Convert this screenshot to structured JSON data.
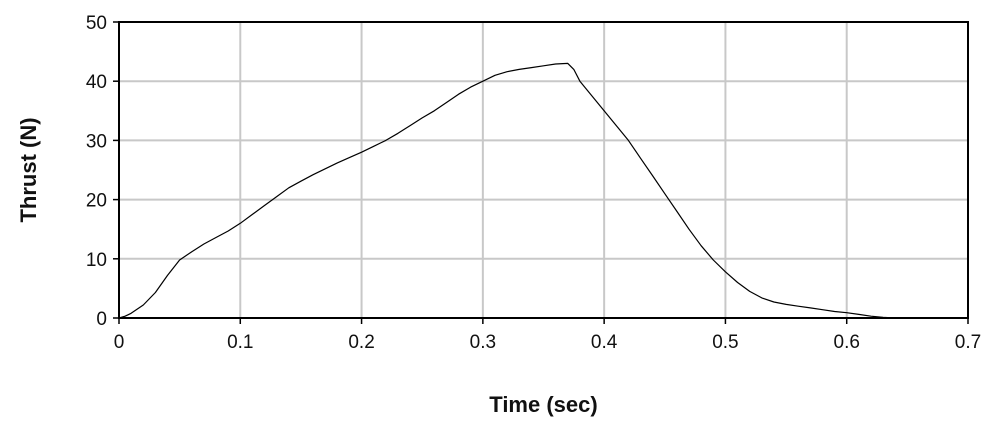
{
  "chart_data": {
    "type": "line",
    "title": "",
    "xlabel": "Time (sec)",
    "ylabel": "Thrust (N)",
    "xlim": [
      0,
      0.7
    ],
    "ylim": [
      0,
      50
    ],
    "xticks": [
      "0",
      "0.1",
      "0.2",
      "0.3",
      "0.4",
      "0.5",
      "0.6",
      "0.7"
    ],
    "yticks": [
      "0",
      "10",
      "20",
      "30",
      "40",
      "50"
    ],
    "grid": true,
    "series": [
      {
        "color": "#000000",
        "x": [
          0,
          0.005,
          0.01,
          0.02,
          0.03,
          0.04,
          0.05,
          0.06,
          0.07,
          0.08,
          0.09,
          0.1,
          0.11,
          0.12,
          0.13,
          0.14,
          0.15,
          0.16,
          0.17,
          0.18,
          0.19,
          0.2,
          0.21,
          0.22,
          0.23,
          0.24,
          0.25,
          0.26,
          0.27,
          0.28,
          0.29,
          0.3,
          0.31,
          0.32,
          0.33,
          0.34,
          0.35,
          0.36,
          0.37,
          0.375,
          0.38,
          0.39,
          0.4,
          0.41,
          0.42,
          0.43,
          0.44,
          0.45,
          0.46,
          0.47,
          0.48,
          0.49,
          0.5,
          0.51,
          0.52,
          0.53,
          0.54,
          0.55,
          0.56,
          0.57,
          0.58,
          0.59,
          0.6,
          0.61,
          0.62,
          0.63,
          0.64
        ],
        "y": [
          0,
          0.3,
          0.8,
          2.2,
          4.3,
          7.2,
          9.8,
          11.2,
          12.5,
          13.6,
          14.7,
          16.0,
          17.5,
          19.0,
          20.5,
          22.0,
          23.1,
          24.2,
          25.2,
          26.2,
          27.1,
          28.0,
          29.0,
          30.0,
          31.2,
          32.5,
          33.8,
          35.0,
          36.4,
          37.8,
          39.0,
          40.0,
          41.0,
          41.6,
          42.0,
          42.3,
          42.6,
          42.9,
          43.0,
          42.0,
          40.0,
          37.5,
          35.0,
          32.5,
          30.0,
          27.0,
          24.0,
          21.0,
          18.0,
          15.0,
          12.2,
          9.8,
          7.8,
          6.0,
          4.5,
          3.4,
          2.7,
          2.3,
          2.0,
          1.7,
          1.4,
          1.1,
          0.9,
          0.6,
          0.3,
          0.1,
          0.0
        ]
      }
    ]
  }
}
